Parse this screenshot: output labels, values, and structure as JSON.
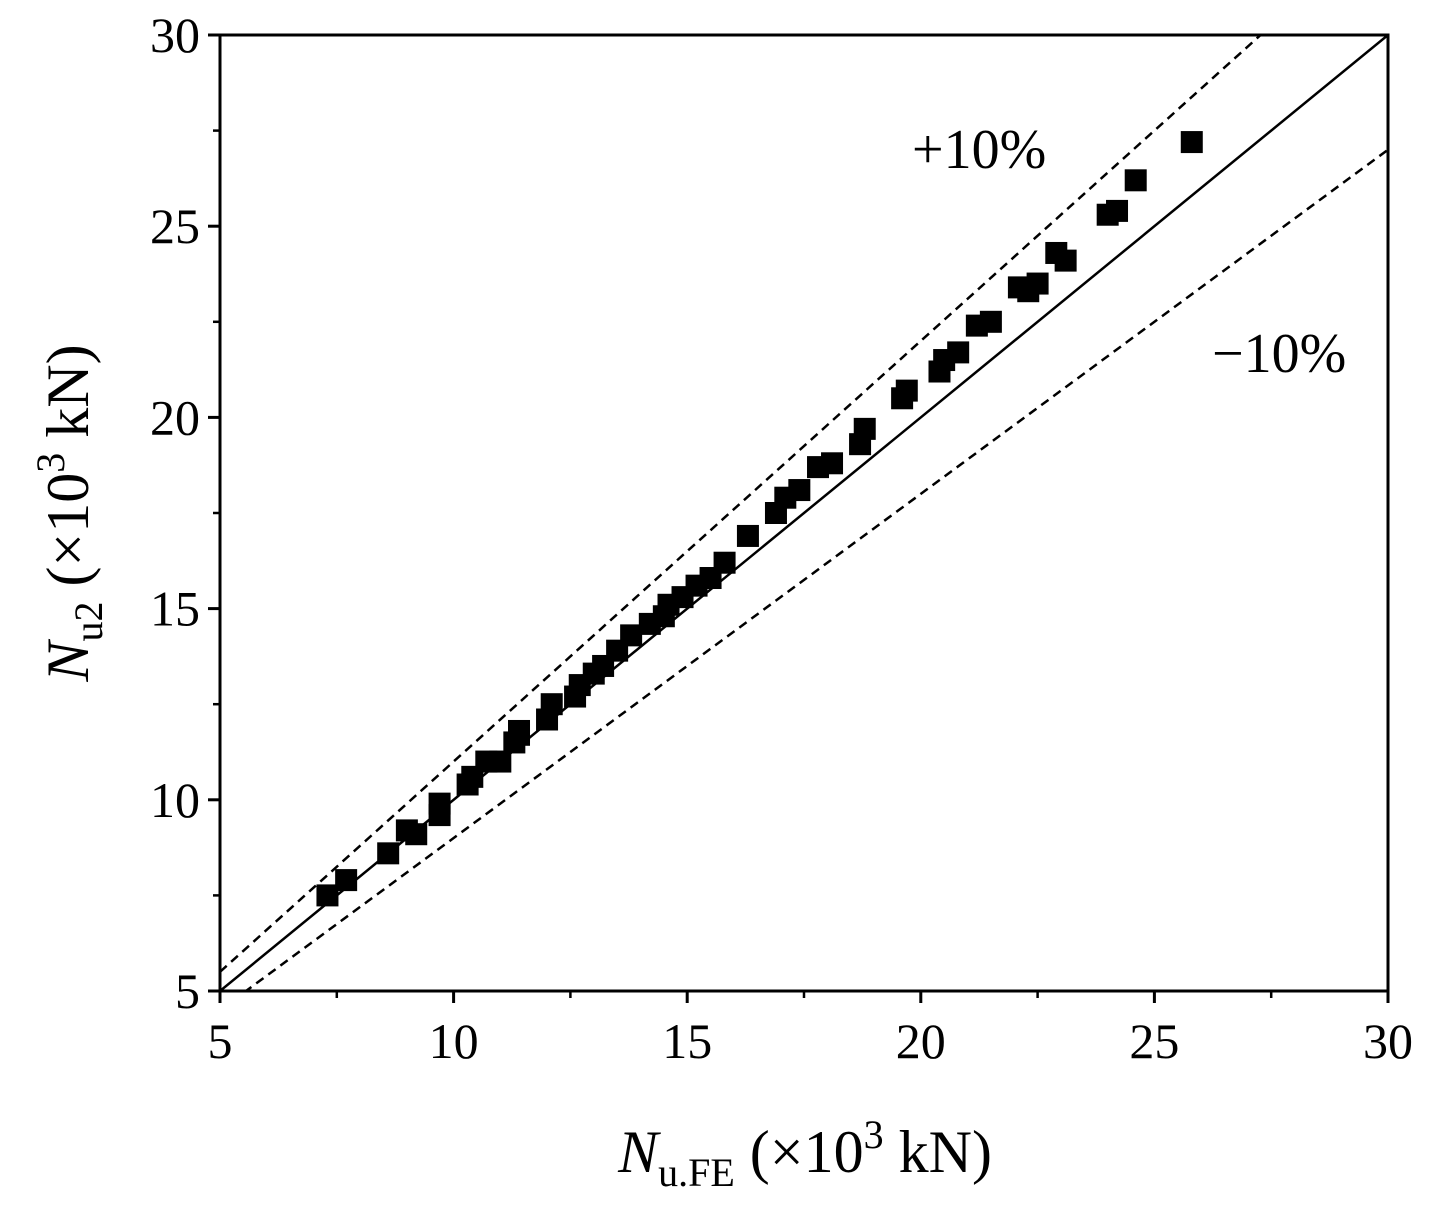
{
  "chart_data": {
    "type": "scatter",
    "title": "",
    "xlabel": {
      "symbol": "N",
      "subscript": "u.FE",
      "unit_prefix": " (×10",
      "unit_exp": "3",
      "unit_suffix": " kN)"
    },
    "ylabel": {
      "symbol": "N",
      "subscript": "u2",
      "unit_prefix": " (×10",
      "unit_exp": "3",
      "unit_suffix": " kN)"
    },
    "xlim": [
      5,
      30
    ],
    "ylim": [
      5,
      30
    ],
    "xticks": [
      5,
      10,
      15,
      20,
      25,
      30
    ],
    "yticks": [
      5,
      10,
      15,
      20,
      25,
      30
    ],
    "grid": false,
    "reference_lines": [
      {
        "name": "equality",
        "slope": 1.0,
        "style": "solid"
      },
      {
        "name": "plus-10-percent",
        "slope": 1.1,
        "style": "dashed",
        "label": "+10%"
      },
      {
        "name": "minus-10-percent",
        "slope": 0.9,
        "style": "dashed",
        "label": "−10%"
      }
    ],
    "series": [
      {
        "name": "Nu2 vs Nu.FE",
        "marker": "square",
        "x": [
          7.3,
          7.7,
          8.6,
          9.0,
          9.2,
          9.7,
          9.7,
          10.3,
          10.4,
          10.7,
          11.0,
          11.3,
          11.4,
          11.4,
          12.0,
          12.1,
          12.6,
          12.7,
          13.0,
          13.2,
          13.5,
          13.8,
          14.2,
          14.5,
          14.6,
          14.9,
          15.2,
          15.5,
          15.8,
          16.3,
          16.9,
          17.1,
          17.4,
          17.8,
          18.1,
          18.7,
          18.8,
          19.6,
          19.7,
          20.4,
          20.5,
          20.8,
          21.2,
          21.5,
          22.1,
          22.3,
          22.5,
          22.9,
          23.1,
          24.0,
          24.2,
          24.6,
          25.8
        ],
        "y": [
          7.5,
          7.9,
          8.6,
          9.2,
          9.1,
          9.6,
          9.9,
          10.4,
          10.6,
          11.0,
          11.0,
          11.5,
          11.7,
          11.8,
          12.1,
          12.5,
          12.7,
          13.0,
          13.3,
          13.5,
          13.9,
          14.3,
          14.6,
          14.8,
          15.1,
          15.3,
          15.6,
          15.8,
          16.2,
          16.9,
          17.5,
          17.9,
          18.1,
          18.7,
          18.8,
          19.3,
          19.7,
          20.5,
          20.7,
          21.2,
          21.5,
          21.7,
          22.4,
          22.5,
          23.4,
          23.3,
          23.5,
          24.3,
          24.1,
          25.3,
          25.4,
          26.2,
          27.2
        ]
      }
    ]
  }
}
